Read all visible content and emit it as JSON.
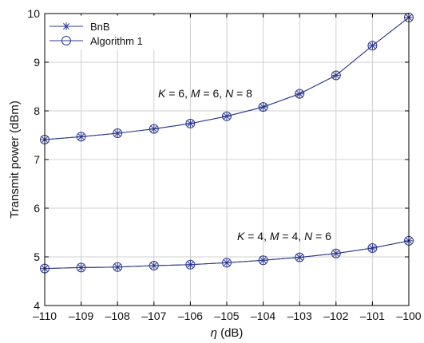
{
  "chart_data": {
    "type": "line",
    "xlabel_symbol": "η",
    "xlabel_unit": " (dB)",
    "ylabel": "Transmit power (dBm)",
    "x": [
      -110,
      -109,
      -108,
      -107,
      -106,
      -105,
      -104,
      -103,
      -102,
      -101,
      -100
    ],
    "xlim": [
      -110,
      -100
    ],
    "ylim": [
      4,
      10
    ],
    "xticks": [
      "–110",
      "–109",
      "–108",
      "–107",
      "–106",
      "–105",
      "–104",
      "–103",
      "–102",
      "–101",
      "–100"
    ],
    "yticks": [
      "4",
      "5",
      "6",
      "7",
      "8",
      "9",
      "10"
    ],
    "grid": true,
    "legend_position": "top-left",
    "legend": [
      {
        "label": "BnB",
        "marker": "asterisk"
      },
      {
        "label": "Algorithm 1",
        "marker": "circle"
      }
    ],
    "line_color": "#2b3990",
    "groups": [
      {
        "annotation": {
          "K": "6",
          "M": "6",
          "N": "8"
        },
        "series": [
          {
            "name": "BnB",
            "values": [
              7.41,
              7.47,
              7.54,
              7.63,
              7.74,
              7.89,
              8.08,
              8.35,
              8.73,
              9.34,
              9.92
            ]
          },
          {
            "name": "Algorithm 1",
            "values": [
              7.41,
              7.47,
              7.54,
              7.63,
              7.74,
              7.89,
              8.08,
              8.35,
              8.73,
              9.34,
              9.92
            ]
          }
        ]
      },
      {
        "annotation": {
          "K": "4",
          "M": "4",
          "N": "6"
        },
        "series": [
          {
            "name": "BnB",
            "values": [
              4.76,
              4.78,
              4.79,
              4.82,
              4.84,
              4.88,
              4.93,
              4.99,
              5.07,
              5.18,
              5.33
            ]
          },
          {
            "name": "Algorithm 1",
            "values": [
              4.76,
              4.78,
              4.79,
              4.82,
              4.84,
              4.88,
              4.93,
              4.99,
              5.07,
              5.18,
              5.33
            ]
          }
        ]
      }
    ]
  }
}
